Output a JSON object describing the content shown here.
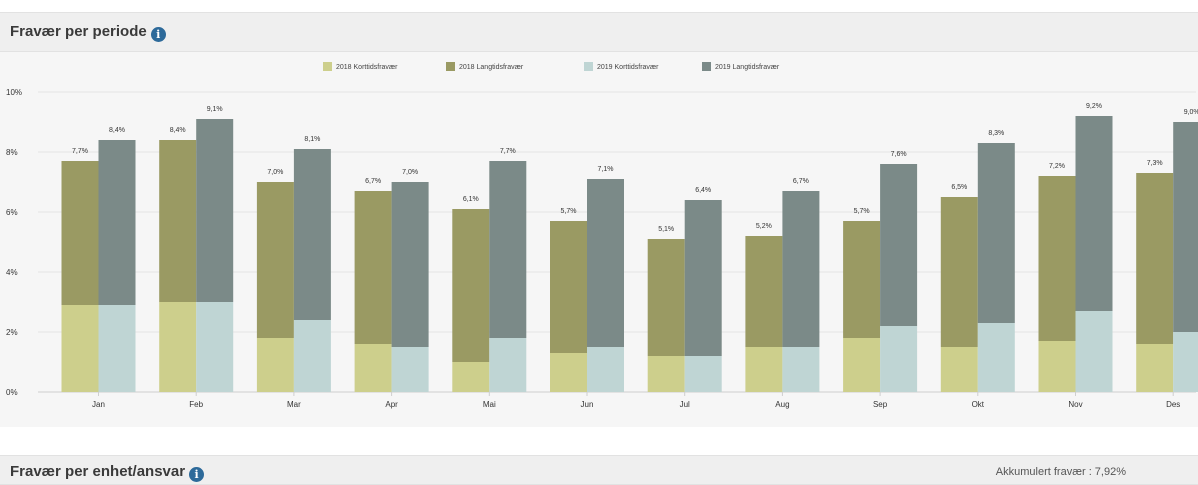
{
  "panel1": {
    "title": "Fravær per periode",
    "info_glyph": "i"
  },
  "panel2": {
    "title": "Fravær per enhet/ansvar",
    "info_glyph": "i",
    "accumulated_label": "Akkumulert fravær : 7,92%"
  },
  "colors": {
    "kort2018": "#cdcf8c",
    "lang2018": "#9a9a63",
    "kort2019": "#bfd5d4",
    "lang2019": "#7b8a88"
  },
  "chart_data": {
    "type": "bar",
    "stacked": true,
    "categories": [
      "Jan",
      "Feb",
      "Mar",
      "Apr",
      "Mai",
      "Jun",
      "Jul",
      "Aug",
      "Sep",
      "Okt",
      "Nov",
      "Des"
    ],
    "series": [
      {
        "name": "2018 Korttidsfravær",
        "group": "2018",
        "values": [
          2.9,
          3.0,
          1.8,
          1.6,
          1.0,
          1.3,
          1.2,
          1.5,
          1.8,
          1.5,
          1.7,
          1.6
        ]
      },
      {
        "name": "2018 Langtidsfravær",
        "group": "2018",
        "values": [
          4.8,
          5.4,
          5.2,
          5.1,
          5.1,
          4.4,
          3.9,
          3.7,
          3.9,
          5.0,
          5.5,
          5.7
        ]
      },
      {
        "name": "2019 Korttidsfravær",
        "group": "2019",
        "values": [
          2.9,
          3.0,
          2.4,
          1.5,
          1.8,
          1.5,
          1.2,
          1.5,
          2.2,
          2.3,
          2.7,
          2.0
        ]
      },
      {
        "name": "2019 Langtidsfravær",
        "group": "2019",
        "values": [
          5.5,
          6.1,
          5.7,
          5.5,
          5.9,
          5.6,
          5.2,
          5.2,
          5.4,
          6.0,
          6.5,
          7.0
        ]
      }
    ],
    "totals_2018": [
      "7,7%",
      "8,4%",
      "7,0%",
      "6,7%",
      "6,1%",
      "5,7%",
      "5,1%",
      "5,2%",
      "5,7%",
      "6,5%",
      "7,2%",
      "7,3%"
    ],
    "totals_2019": [
      "8,4%",
      "9,1%",
      "8,1%",
      "7,0%",
      "7,7%",
      "7,1%",
      "6,4%",
      "6,7%",
      "7,6%",
      "8,3%",
      "9,2%",
      "9,0%"
    ],
    "y_ticks": [
      "0%",
      "2%",
      "4%",
      "6%",
      "8%",
      "10%"
    ],
    "ylim": [
      0,
      10
    ],
    "legend_position": "top-center",
    "grid": true
  }
}
